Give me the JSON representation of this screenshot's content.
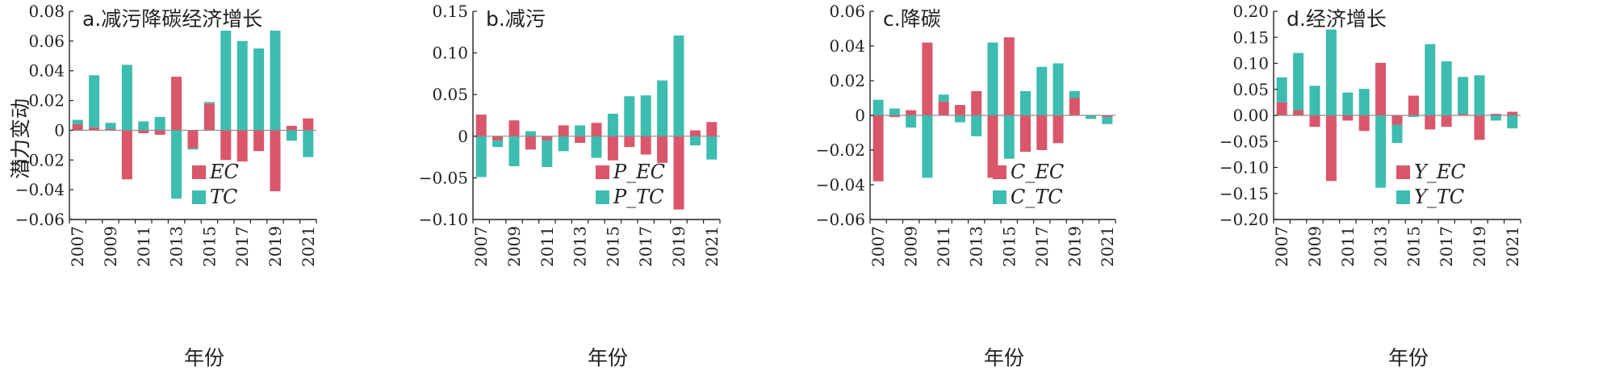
{
  "figure": {
    "y_axis_label": "潜力变动",
    "x_axis_label": "年份"
  },
  "colors": {
    "EC": "#d9566b",
    "TC": "#3dbcb0",
    "axis": "#231f20",
    "zero": "#8c8c8c"
  },
  "chart_data": [
    {
      "type": "bar",
      "title": "a.减污降碳经济增长",
      "ylim": [
        -0.06,
        0.08
      ],
      "yticks": [
        -0.06,
        -0.04,
        -0.02,
        0,
        0.02,
        0.04,
        0.06,
        0.08
      ],
      "ytick_labels": [
        "−0.06",
        "−0.04",
        "−0.02",
        "0",
        "0.02",
        "0.04",
        "0.06",
        "0.08"
      ],
      "categories": [
        "2007",
        "2008",
        "2009",
        "2010",
        "2011",
        "2012",
        "2013",
        "2014",
        "2015",
        "2016",
        "2017",
        "2018",
        "2019",
        "2020",
        "2021"
      ],
      "xtick_labels": [
        "2007",
        "2009",
        "2011",
        "2013",
        "2015",
        "2017",
        "2019",
        "2021"
      ],
      "stacked": true,
      "legend": "bottom-right",
      "series": [
        {
          "name": "EC",
          "values": [
            0.004,
            0.002,
            0.001,
            -0.033,
            -0.002,
            -0.003,
            0.036,
            -0.012,
            0.018,
            -0.02,
            -0.021,
            -0.014,
            -0.041,
            0.003,
            0.008
          ]
        },
        {
          "name": "TC",
          "values": [
            0.003,
            0.035,
            0.004,
            0.044,
            0.006,
            0.009,
            -0.046,
            -0.001,
            0.001,
            0.067,
            0.06,
            0.055,
            0.067,
            -0.007,
            -0.018
          ]
        }
      ]
    },
    {
      "type": "bar",
      "title": "b.减污",
      "ylim": [
        -0.1,
        0.15
      ],
      "yticks": [
        -0.1,
        -0.05,
        0,
        0.05,
        0.1,
        0.15
      ],
      "ytick_labels": [
        "−0.10",
        "−0.05",
        "0",
        "0.05",
        "0.10",
        "0.15"
      ],
      "categories": [
        "2007",
        "2008",
        "2009",
        "2010",
        "2011",
        "2012",
        "2013",
        "2014",
        "2015",
        "2016",
        "2017",
        "2018",
        "2019",
        "2020",
        "2021"
      ],
      "xtick_labels": [
        "2007",
        "2009",
        "2011",
        "2013",
        "2015",
        "2017",
        "2019",
        "2021"
      ],
      "stacked": true,
      "legend": "bottom-right",
      "series": [
        {
          "name": "P_EC",
          "values": [
            0.026,
            -0.005,
            0.019,
            -0.016,
            -0.005,
            0.013,
            -0.008,
            0.016,
            -0.029,
            -0.013,
            -0.022,
            -0.032,
            -0.088,
            0.007,
            0.017
          ]
        },
        {
          "name": "P_TC",
          "values": [
            -0.049,
            -0.008,
            -0.036,
            0.006,
            -0.032,
            -0.018,
            0.013,
            -0.026,
            0.027,
            0.048,
            0.049,
            0.067,
            0.121,
            -0.011,
            -0.028
          ]
        }
      ]
    },
    {
      "type": "bar",
      "title": "c.降碳",
      "ylim": [
        -0.06,
        0.06
      ],
      "yticks": [
        -0.06,
        -0.04,
        -0.02,
        0,
        0.02,
        0.04,
        0.06
      ],
      "ytick_labels": [
        "−0.06",
        "−0.04",
        "−0.02",
        "0",
        "0.02",
        "0.04",
        "0.06"
      ],
      "categories": [
        "2007",
        "2008",
        "2009",
        "2010",
        "2011",
        "2012",
        "2013",
        "2014",
        "2015",
        "2016",
        "2017",
        "2018",
        "2019",
        "2020",
        "2021"
      ],
      "xtick_labels": [
        "2007",
        "2009",
        "2011",
        "2013",
        "2015",
        "2017",
        "2019",
        "2021"
      ],
      "stacked": true,
      "legend": "bottom-right",
      "series": [
        {
          "name": "C_EC",
          "values": [
            -0.038,
            -0.001,
            0.003,
            0.042,
            0.008,
            0.006,
            0.014,
            -0.036,
            0.045,
            -0.021,
            -0.02,
            -0.016,
            0.01,
            0.0,
            -0.001
          ]
        },
        {
          "name": "C_TC",
          "values": [
            0.009,
            0.004,
            -0.007,
            -0.036,
            0.004,
            -0.004,
            -0.012,
            0.042,
            -0.025,
            0.014,
            0.028,
            0.03,
            0.004,
            -0.002,
            -0.004
          ]
        }
      ]
    },
    {
      "type": "bar",
      "title": "d.经济增长",
      "ylim": [
        -0.2,
        0.2
      ],
      "yticks": [
        -0.2,
        -0.15,
        -0.1,
        -0.05,
        0,
        0.05,
        0.1,
        0.15,
        0.2
      ],
      "ytick_labels": [
        "−0.20",
        "−0.15",
        "−0.10",
        "−0.05",
        "0.00",
        "0.05",
        "0.10",
        "0.15",
        "0.20"
      ],
      "categories": [
        "2007",
        "2008",
        "2009",
        "2010",
        "2011",
        "2012",
        "2013",
        "2014",
        "2015",
        "2016",
        "2017",
        "2018",
        "2019",
        "2020",
        "2021"
      ],
      "xtick_labels": [
        "2007",
        "2009",
        "2011",
        "2013",
        "2015",
        "2017",
        "2019",
        "2021"
      ],
      "stacked": true,
      "legend": "bottom-right",
      "series": [
        {
          "name": "Y_EC",
          "values": [
            0.025,
            0.01,
            -0.022,
            -0.126,
            -0.01,
            -0.03,
            0.101,
            -0.018,
            0.038,
            -0.027,
            -0.022,
            0.003,
            -0.047,
            0.003,
            0.007
          ]
        },
        {
          "name": "Y_TC",
          "values": [
            0.048,
            0.11,
            0.057,
            0.165,
            0.044,
            0.051,
            -0.139,
            -0.035,
            -0.003,
            0.137,
            0.104,
            0.071,
            0.077,
            -0.01,
            -0.025
          ]
        }
      ]
    }
  ]
}
